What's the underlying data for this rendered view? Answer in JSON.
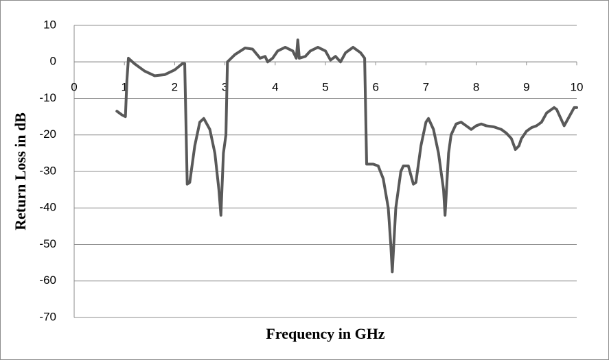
{
  "chart_data": {
    "type": "line",
    "x_label": "Frequency in GHz",
    "y_label": "Return Loss in dB",
    "xlim": [
      0,
      10
    ],
    "xticks": [
      0,
      1,
      2,
      3,
      4,
      5,
      6,
      7,
      8,
      9,
      10
    ],
    "ylim": [
      -70,
      10
    ],
    "yticks": [
      10,
      0,
      -10,
      -20,
      -30,
      -40,
      -50,
      -60,
      -70
    ],
    "grid": true,
    "x": [
      0.85,
      0.95,
      1.02,
      1.05,
      1.08,
      1.2,
      1.4,
      1.6,
      1.8,
      2.0,
      2.15,
      2.2,
      2.25,
      2.3,
      2.4,
      2.5,
      2.58,
      2.7,
      2.8,
      2.88,
      2.92,
      2.97,
      3.02,
      3.05,
      3.2,
      3.4,
      3.55,
      3.7,
      3.8,
      3.85,
      3.95,
      4.05,
      4.2,
      4.35,
      4.42,
      4.45,
      4.48,
      4.6,
      4.7,
      4.85,
      5.0,
      5.1,
      5.2,
      5.3,
      5.4,
      5.55,
      5.7,
      5.78,
      5.82,
      5.95,
      6.05,
      6.15,
      6.25,
      6.3,
      6.33,
      6.4,
      6.5,
      6.55,
      6.65,
      6.75,
      6.8,
      6.9,
      7.0,
      7.05,
      7.15,
      7.25,
      7.35,
      7.38,
      7.45,
      7.5,
      7.6,
      7.7,
      7.8,
      7.9,
      8.0,
      8.1,
      8.2,
      8.35,
      8.5,
      8.6,
      8.7,
      8.78,
      8.85,
      8.9,
      9.0,
      9.1,
      9.2,
      9.3,
      9.4,
      9.5,
      9.55,
      9.6,
      9.7,
      9.75,
      9.85,
      9.95,
      10.0
    ],
    "series": [
      {
        "color": "#595959",
        "values": [
          -13.5,
          -14.5,
          -15,
          -5,
          1,
          -0.5,
          -2.5,
          -3.8,
          -3.5,
          -2.2,
          -0.5,
          -0.5,
          -33.5,
          -33,
          -23,
          -16.5,
          -15.5,
          -18.5,
          -25,
          -35,
          -42,
          -25,
          -20,
          0,
          2,
          3.8,
          3.5,
          1,
          1.5,
          0,
          1,
          3,
          4,
          3,
          1,
          6,
          1,
          1.5,
          3,
          4,
          3,
          0.5,
          1.5,
          0,
          2.5,
          4,
          2.5,
          1,
          -28,
          -28,
          -28.5,
          -32,
          -40,
          -50,
          -57.5,
          -40,
          -30,
          -28.5,
          -28.5,
          -33.5,
          -33,
          -23,
          -16.5,
          -15.5,
          -18.5,
          -25,
          -35,
          -42,
          -25,
          -20,
          -17,
          -16.5,
          -17.5,
          -18.5,
          -17.5,
          -17,
          -17.5,
          -17.8,
          -18.5,
          -19.5,
          -21,
          -24,
          -23,
          -21,
          -19,
          -18,
          -17.5,
          -16.5,
          -14,
          -13,
          -12.5,
          -13,
          -16,
          -17.5,
          -15,
          -12.5,
          -12.5
        ]
      }
    ]
  }
}
